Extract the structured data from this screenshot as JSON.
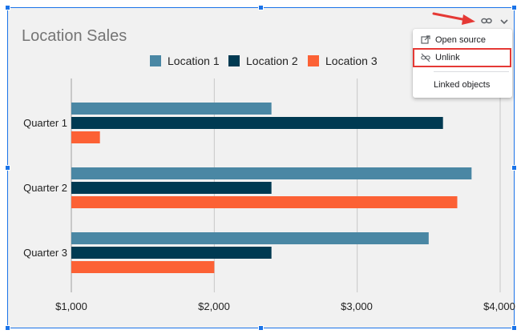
{
  "chart_data": {
    "type": "bar",
    "orientation": "horizontal",
    "title": "Location Sales",
    "categories": [
      "Quarter 1",
      "Quarter 2",
      "Quarter 3"
    ],
    "series": [
      {
        "name": "Location 1",
        "color": "#4a87a4",
        "values": [
          2400,
          3800,
          3500
        ]
      },
      {
        "name": "Location 2",
        "color": "#003a52",
        "values": [
          3600,
          2400,
          2400
        ]
      },
      {
        "name": "Location 3",
        "color": "#fc6135",
        "values": [
          1200,
          3700,
          2000
        ]
      }
    ],
    "xlim": [
      1000,
      4000
    ],
    "ticks": [
      1000,
      2000,
      3000,
      4000
    ],
    "tick_labels": [
      "$1,000",
      "$2,000",
      "$3,000",
      "$4,000"
    ],
    "legend_position": "top",
    "grid": true
  },
  "link_menu": {
    "link_icon": "link-icon",
    "dropdown_icon": "chevron-down-icon",
    "items": [
      {
        "label": "Open source",
        "icon": "open-in-new-icon"
      },
      {
        "label": "Unlink",
        "icon": "link-off-icon",
        "highlighted": true
      },
      {
        "label": "Linked objects",
        "icon": ""
      }
    ]
  },
  "colors": {
    "selection": "#1a73e8",
    "highlight": "#e53935",
    "chart_background": "#f1f1f1"
  }
}
